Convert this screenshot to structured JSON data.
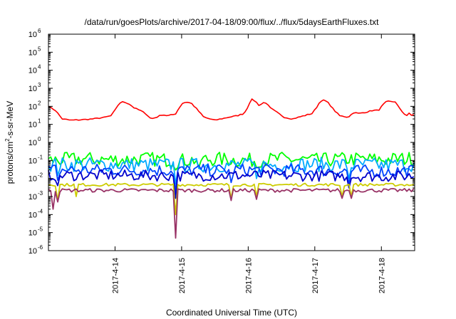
{
  "chart_data": {
    "type": "line",
    "title": "/data/run/goesPlots/archive/2017-04-18/09:00/flux/../flux/5daysEarthFluxes.txt",
    "xlabel": "Coordinated Universal Time (UTC)",
    "ylabel": "protons/cm2-s-sr-MeV",
    "y_scale": "log",
    "ylim": [
      1e-06,
      1000000.0
    ],
    "xlim": [
      "2017-04-13T00:00",
      "2017-04-18T12:00"
    ],
    "grid": false,
    "legend": "none",
    "y_ticks": [
      {
        "value": 1e-06,
        "base": "10",
        "exp": "-6"
      },
      {
        "value": 1e-05,
        "base": "10",
        "exp": "-5"
      },
      {
        "value": 0.0001,
        "base": "10",
        "exp": "-4"
      },
      {
        "value": 0.001,
        "base": "10",
        "exp": "-3"
      },
      {
        "value": 0.01,
        "base": "10",
        "exp": "-2"
      },
      {
        "value": 0.1,
        "base": "10",
        "exp": "-1"
      },
      {
        "value": 1,
        "base": "10",
        "exp": "0"
      },
      {
        "value": 10,
        "base": "10",
        "exp": "1"
      },
      {
        "value": 100,
        "base": "10",
        "exp": "2"
      },
      {
        "value": 1000,
        "base": "10",
        "exp": "3"
      },
      {
        "value": 10000,
        "base": "10",
        "exp": "4"
      },
      {
        "value": 100000,
        "base": "10",
        "exp": "5"
      },
      {
        "value": 1000000,
        "base": "10",
        "exp": "6"
      }
    ],
    "x_ticks": [
      {
        "value": "2017-04-14",
        "label": "2017-4-14"
      },
      {
        "value": "2017-04-15",
        "label": "2017-4-15"
      },
      {
        "value": "2017-04-16",
        "label": "2017-4-16"
      },
      {
        "value": "2017-04-17",
        "label": "2017-4-17"
      },
      {
        "value": "2017-04-18",
        "label": "2017-4-18"
      }
    ],
    "series": [
      {
        "color": "#ff0000",
        "noise": 0.03,
        "points": [
          [
            "2017-04-13T00:00",
            100
          ],
          [
            "2017-04-13T02:30",
            60
          ],
          [
            "2017-04-13T05:00",
            20
          ],
          [
            "2017-04-13T08:00",
            17
          ],
          [
            "2017-04-13T12:00",
            18
          ],
          [
            "2017-04-13T16:00",
            20
          ],
          [
            "2017-04-13T20:00",
            24
          ],
          [
            "2017-04-13T22:30",
            30
          ],
          [
            "2017-04-14T00:00",
            60
          ],
          [
            "2017-04-14T01:30",
            150
          ],
          [
            "2017-04-14T03:00",
            180
          ],
          [
            "2017-04-14T05:00",
            140
          ],
          [
            "2017-04-14T07:00",
            80
          ],
          [
            "2017-04-14T09:00",
            60
          ],
          [
            "2017-04-14T11:00",
            40
          ],
          [
            "2017-04-14T13:00",
            20
          ],
          [
            "2017-04-14T15:00",
            25
          ],
          [
            "2017-04-14T17:00",
            35
          ],
          [
            "2017-04-14T19:00",
            30
          ],
          [
            "2017-04-14T21:00",
            35
          ],
          [
            "2017-04-14T22:00",
            40
          ],
          [
            "2017-04-14T23:00",
            80
          ],
          [
            "2017-04-15T00:30",
            160
          ],
          [
            "2017-04-15T02:00",
            170
          ],
          [
            "2017-04-15T03:30",
            150
          ],
          [
            "2017-04-15T05:30",
            70
          ],
          [
            "2017-04-15T08:00",
            25
          ],
          [
            "2017-04-15T12:00",
            17
          ],
          [
            "2017-04-15T17:00",
            25
          ],
          [
            "2017-04-15T20:00",
            30
          ],
          [
            "2017-04-15T22:30",
            40
          ],
          [
            "2017-04-16T00:00",
            100
          ],
          [
            "2017-04-16T01:00",
            250
          ],
          [
            "2017-04-16T02:30",
            200
          ],
          [
            "2017-04-16T04:00",
            110
          ],
          [
            "2017-04-16T06:00",
            180
          ],
          [
            "2017-04-16T08:00",
            80
          ],
          [
            "2017-04-16T10:00",
            50
          ],
          [
            "2017-04-16T13:00",
            25
          ],
          [
            "2017-04-16T16:00",
            20
          ],
          [
            "2017-04-16T20:00",
            30
          ],
          [
            "2017-04-16T23:00",
            40
          ],
          [
            "2017-04-17T00:30",
            80
          ],
          [
            "2017-04-17T02:00",
            200
          ],
          [
            "2017-04-17T03:30",
            220
          ],
          [
            "2017-04-17T05:00",
            150
          ],
          [
            "2017-04-17T07:00",
            60
          ],
          [
            "2017-04-17T09:00",
            30
          ],
          [
            "2017-04-17T12:00",
            25
          ],
          [
            "2017-04-17T14:00",
            45
          ],
          [
            "2017-04-17T16:00",
            40
          ],
          [
            "2017-04-17T19:00",
            50
          ],
          [
            "2017-04-17T21:00",
            60
          ],
          [
            "2017-04-17T23:00",
            60
          ],
          [
            "2017-04-18T00:30",
            120
          ],
          [
            "2017-04-18T02:00",
            190
          ],
          [
            "2017-04-18T03:30",
            180
          ],
          [
            "2017-04-18T05:00",
            180
          ],
          [
            "2017-04-18T07:00",
            60
          ],
          [
            "2017-04-18T09:00",
            30
          ],
          [
            "2017-04-18T10:00",
            40
          ],
          [
            "2017-04-18T11:00",
            30
          ],
          [
            "2017-04-18T12:00",
            40
          ]
        ]
      },
      {
        "color": "#00ff00",
        "noise": 0.4,
        "points": [
          [
            "2017-04-13T00:00",
            0.1
          ],
          [
            "2017-04-13T12:00",
            0.12
          ],
          [
            "2017-04-14T00:00",
            0.11
          ],
          [
            "2017-04-14T12:00",
            0.12
          ],
          [
            "2017-04-15T00:00",
            0.1
          ],
          [
            "2017-04-15T12:00",
            0.12
          ],
          [
            "2017-04-16T00:00",
            0.1
          ],
          [
            "2017-04-16T12:00",
            0.12
          ],
          [
            "2017-04-17T00:00",
            0.1
          ],
          [
            "2017-04-17T12:00",
            0.12
          ],
          [
            "2017-04-18T00:00",
            0.11
          ],
          [
            "2017-04-18T12:00",
            0.13
          ]
        ],
        "dips": [
          [
            "2017-04-14T22:00",
            0.03
          ],
          [
            "2017-04-15T06:00",
            0.04
          ],
          [
            "2017-04-16T03:00",
            0.04
          ]
        ]
      },
      {
        "color": "#00aaff",
        "noise": 0.4,
        "points": [
          [
            "2017-04-13T00:00",
            0.06
          ],
          [
            "2017-04-14T00:00",
            0.06
          ],
          [
            "2017-04-15T00:00",
            0.055
          ],
          [
            "2017-04-16T00:00",
            0.055
          ],
          [
            "2017-04-17T00:00",
            0.06
          ],
          [
            "2017-04-18T00:00",
            0.055
          ],
          [
            "2017-04-18T12:00",
            0.06
          ]
        ],
        "dips": [
          [
            "2017-04-13T03:00",
            0.015
          ],
          [
            "2017-04-14T22:00",
            0.005
          ],
          [
            "2017-04-16T03:00",
            0.01
          ],
          [
            "2017-04-17T12:00",
            0.01
          ]
        ]
      },
      {
        "color": "#0044ff",
        "noise": 0.35,
        "points": [
          [
            "2017-04-13T00:00",
            0.03
          ],
          [
            "2017-04-14T00:00",
            0.03
          ],
          [
            "2017-04-15T00:00",
            0.028
          ],
          [
            "2017-04-16T00:00",
            0.03
          ],
          [
            "2017-04-17T00:00",
            0.028
          ],
          [
            "2017-04-18T00:00",
            0.025
          ],
          [
            "2017-04-18T12:00",
            0.028
          ]
        ],
        "dips": [
          [
            "2017-04-13T03:00",
            0.008
          ],
          [
            "2017-04-14T22:00",
            0.002
          ],
          [
            "2017-04-15T18:00",
            0.006
          ],
          [
            "2017-04-17T12:00",
            0.005
          ]
        ]
      },
      {
        "color": "#0000cc",
        "noise": 0.3,
        "points": [
          [
            "2017-04-13T00:00",
            0.015
          ],
          [
            "2017-04-14T00:00",
            0.015
          ],
          [
            "2017-04-15T00:00",
            0.014
          ],
          [
            "2017-04-16T00:00",
            0.015
          ],
          [
            "2017-04-17T00:00",
            0.014
          ],
          [
            "2017-04-18T00:00",
            0.013
          ],
          [
            "2017-04-18T12:00",
            0.014
          ]
        ],
        "dips": [
          [
            "2017-04-13T03:00",
            0.004
          ],
          [
            "2017-04-14T22:00",
            0.0008
          ],
          [
            "2017-04-17T12:00",
            0.003
          ]
        ]
      },
      {
        "color": "#cccc00",
        "noise": 0.08,
        "points": [
          [
            "2017-04-13T00:00",
            0.0045
          ],
          [
            "2017-04-18T12:00",
            0.0045
          ]
        ],
        "dips": [
          [
            "2017-04-13T03:00",
            0.0006
          ],
          [
            "2017-04-13T10:00",
            0.001
          ],
          [
            "2017-04-14T22:00",
            0.0001
          ],
          [
            "2017-04-15T18:00",
            0.0008
          ],
          [
            "2017-04-16T03:00",
            0.001
          ],
          [
            "2017-04-17T10:00",
            0.001
          ],
          [
            "2017-04-17T13:00",
            0.001
          ]
        ]
      },
      {
        "color": "#993366",
        "noise": 0.1,
        "points": [
          [
            "2017-04-13T00:00",
            0.0022
          ],
          [
            "2017-04-18T12:00",
            0.0022
          ]
        ],
        "dips": [
          [
            "2017-04-13T02:00",
            0.0002
          ],
          [
            "2017-04-13T03:30",
            0.0005
          ],
          [
            "2017-04-14T22:00",
            5e-06
          ],
          [
            "2017-04-15T18:00",
            0.0006
          ],
          [
            "2017-04-16T03:00",
            0.0007
          ],
          [
            "2017-04-17T10:00",
            0.0008
          ],
          [
            "2017-04-17T13:00",
            0.0008
          ]
        ]
      }
    ]
  }
}
